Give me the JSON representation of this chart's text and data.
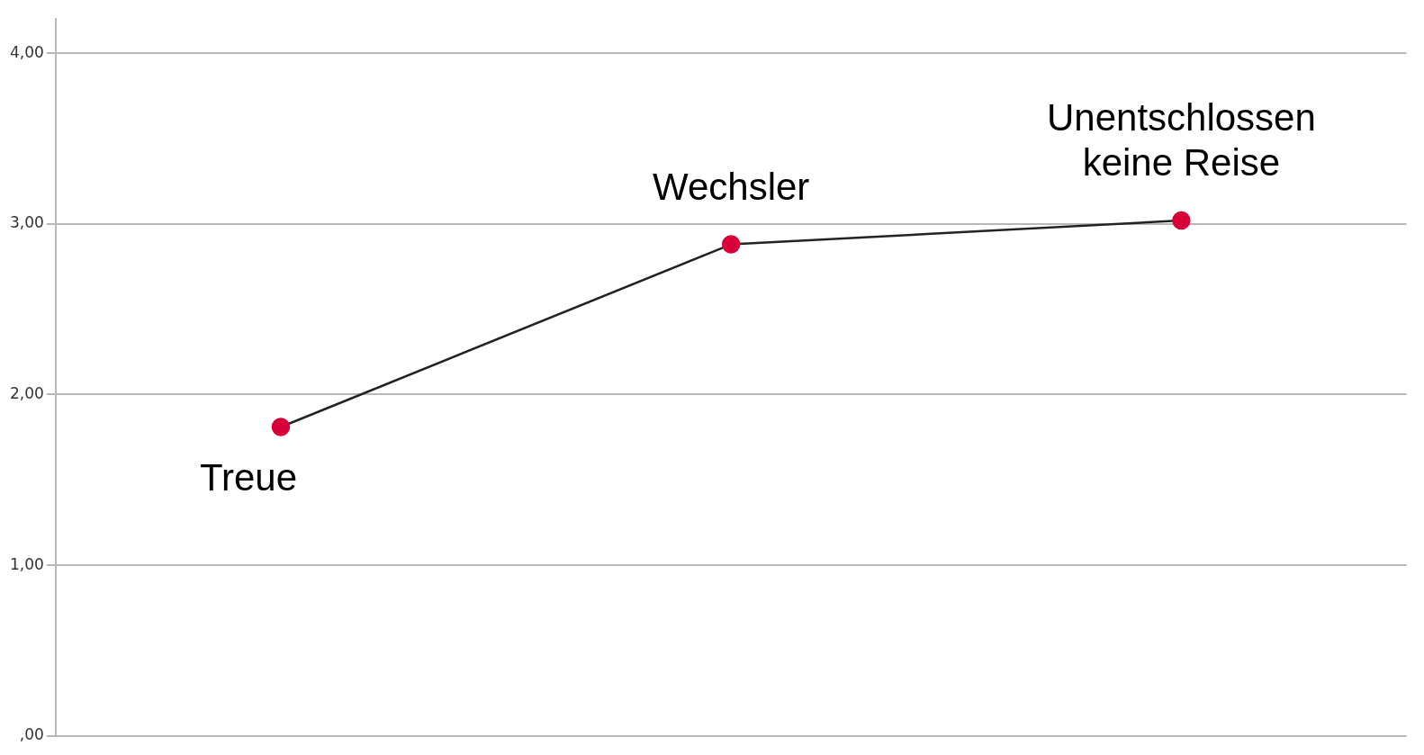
{
  "chart_data": {
    "type": "line",
    "categories": [
      "Treue",
      "Wechsler",
      "Unentschlossen keine Reise"
    ],
    "values": [
      1.81,
      2.88,
      3.02
    ],
    "color": "#222222",
    "marker": "circle",
    "colors": [
      "#d9003a",
      "#d9003a",
      "#d9003a"
    ],
    "line_style": "solid",
    "ylim": [
      0,
      4.2
    ],
    "yticks": [
      {
        "value": 0,
        "label": ",00"
      },
      {
        "value": 1,
        "label": "1,00"
      },
      {
        "value": 2,
        "label": "2,00"
      },
      {
        "value": 3,
        "label": "3,00"
      },
      {
        "value": 4,
        "label": "4,00"
      }
    ],
    "grid": "y",
    "tick_labels": "y",
    "legend": false
  }
}
